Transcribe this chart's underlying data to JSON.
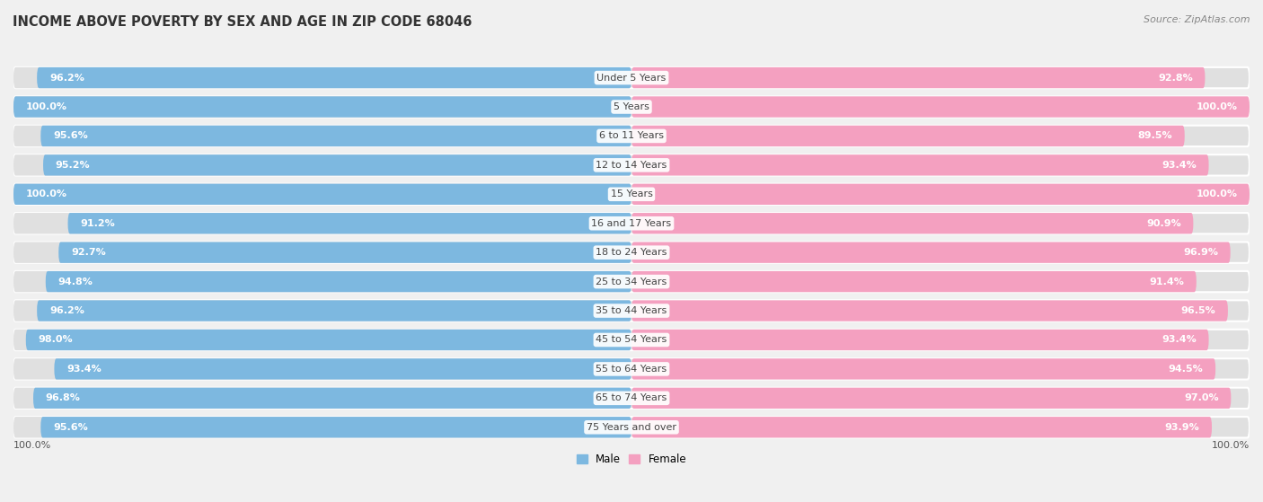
{
  "title": "INCOME ABOVE POVERTY BY SEX AND AGE IN ZIP CODE 68046",
  "source": "Source: ZipAtlas.com",
  "categories": [
    "Under 5 Years",
    "5 Years",
    "6 to 11 Years",
    "12 to 14 Years",
    "15 Years",
    "16 and 17 Years",
    "18 to 24 Years",
    "25 to 34 Years",
    "35 to 44 Years",
    "45 to 54 Years",
    "55 to 64 Years",
    "65 to 74 Years",
    "75 Years and over"
  ],
  "male_values": [
    96.2,
    100.0,
    95.6,
    95.2,
    100.0,
    91.2,
    92.7,
    94.8,
    96.2,
    98.0,
    93.4,
    96.8,
    95.6
  ],
  "female_values": [
    92.8,
    100.0,
    89.5,
    93.4,
    100.0,
    90.9,
    96.9,
    91.4,
    96.5,
    93.4,
    94.5,
    97.0,
    93.9
  ],
  "male_color": "#7db8e0",
  "female_color": "#f4a0c0",
  "male_label": "Male",
  "female_label": "Female",
  "background_color": "#f0f0f0",
  "row_bg_color": "#e0e0e0",
  "title_fontsize": 10.5,
  "source_fontsize": 8,
  "label_fontsize": 8,
  "value_fontsize": 8
}
